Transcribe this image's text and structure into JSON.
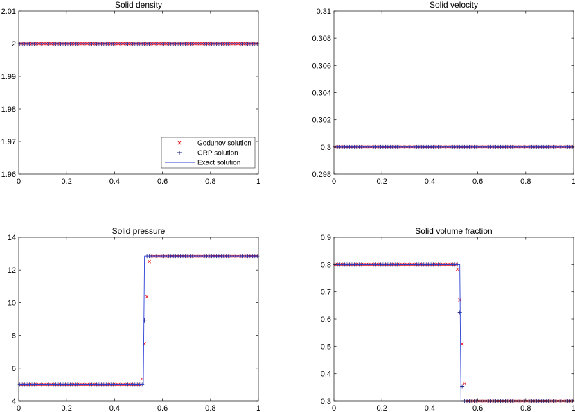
{
  "chart_data": [
    {
      "type": "line",
      "title": "Solid density",
      "xlim": [
        0,
        1
      ],
      "ylim": [
        1.96,
        2.01
      ],
      "xticks": [
        0,
        0.2,
        0.4,
        0.6,
        0.8,
        1
      ],
      "xtick_labels": [
        "0",
        "0.2",
        "0.4",
        "0.6",
        "0.8",
        "1"
      ],
      "yticks": [
        1.96,
        1.97,
        1.98,
        1.99,
        2,
        2.01
      ],
      "ytick_labels": [
        "1.96",
        "1.97",
        "1.98",
        "1.99",
        "2",
        "2.01"
      ],
      "series": [
        {
          "name": "Godunov solution",
          "style": "x-marker",
          "color": "#e8141c",
          "profile": "constant",
          "left": 2,
          "right": 2
        },
        {
          "name": "GRP solution",
          "style": "plus-marker",
          "color": "#15157a",
          "profile": "constant",
          "left": 2,
          "right": 2
        },
        {
          "name": "Exact solution",
          "style": "line",
          "color": "#2a3fd6",
          "points": [
            [
              0,
              2
            ],
            [
              1,
              2
            ]
          ]
        }
      ],
      "legend": "bottom-right"
    },
    {
      "type": "line",
      "title": "Solid velocity",
      "xlim": [
        0,
        1
      ],
      "ylim": [
        0.298,
        0.31
      ],
      "xticks": [
        0,
        0.2,
        0.4,
        0.6,
        0.8,
        1
      ],
      "xtick_labels": [
        "0",
        "0.2",
        "0.4",
        "0.6",
        "0.8",
        "1"
      ],
      "yticks": [
        0.298,
        0.3,
        0.302,
        0.304,
        0.306,
        0.308,
        0.31
      ],
      "ytick_labels": [
        "0.298",
        "0.3",
        "0.302",
        "0.304",
        "0.306",
        "0.308",
        "0.31"
      ],
      "series": [
        {
          "name": "Godunov solution",
          "style": "x-marker",
          "color": "#e8141c",
          "profile": "constant",
          "left": 0.3,
          "right": 0.3
        },
        {
          "name": "GRP solution",
          "style": "plus-marker",
          "color": "#15157a",
          "profile": "constant",
          "left": 0.3,
          "right": 0.3
        },
        {
          "name": "Exact solution",
          "style": "line",
          "color": "#2a3fd6",
          "points": [
            [
              0,
              0.3
            ],
            [
              1,
              0.3
            ]
          ]
        }
      ]
    },
    {
      "type": "line",
      "title": "Solid pressure",
      "xlim": [
        0,
        1
      ],
      "ylim": [
        4,
        14
      ],
      "xticks": [
        0,
        0.2,
        0.4,
        0.6,
        0.8,
        1
      ],
      "xtick_labels": [
        "0",
        "0.2",
        "0.4",
        "0.6",
        "0.8",
        "1"
      ],
      "yticks": [
        4,
        6,
        8,
        10,
        12,
        14
      ],
      "ytick_labels": [
        "4",
        "6",
        "8",
        "10",
        "12",
        "14"
      ],
      "series": [
        {
          "name": "Godunov solution",
          "style": "x-marker",
          "color": "#e8141c",
          "profile": "step",
          "left": 5,
          "right": 12.85,
          "jump_start": 0.51,
          "jump_end": 0.55
        },
        {
          "name": "GRP solution",
          "style": "plus-marker",
          "color": "#15157a",
          "profile": "step",
          "left": 5,
          "right": 12.85,
          "jump_start": 0.515,
          "jump_end": 0.535
        },
        {
          "name": "Exact solution",
          "style": "line",
          "color": "#2a3fd6",
          "points": [
            [
              0,
              5
            ],
            [
              0.52,
              5
            ],
            [
              0.525,
              12.85
            ],
            [
              1,
              12.85
            ]
          ]
        }
      ]
    },
    {
      "type": "line",
      "title": "Solid volume fraction",
      "xlim": [
        0,
        1
      ],
      "ylim": [
        0.3,
        0.9
      ],
      "xticks": [
        0,
        0.2,
        0.4,
        0.6,
        0.8,
        1
      ],
      "xtick_labels": [
        "0",
        "0.2",
        "0.4",
        "0.6",
        "0.8",
        "1"
      ],
      "yticks": [
        0.3,
        0.4,
        0.5,
        0.6,
        0.7,
        0.8,
        0.9
      ],
      "ytick_labels": [
        "0.3",
        "0.4",
        "0.5",
        "0.6",
        "0.7",
        "0.8",
        "0.9"
      ],
      "series": [
        {
          "name": "Godunov solution",
          "style": "x-marker",
          "color": "#e8141c",
          "profile": "step",
          "left": 0.8,
          "right": 0.3,
          "jump_start": 0.51,
          "jump_end": 0.555
        },
        {
          "name": "GRP solution",
          "style": "plus-marker",
          "color": "#15157a",
          "profile": "step",
          "left": 0.8,
          "right": 0.3,
          "jump_start": 0.515,
          "jump_end": 0.54
        },
        {
          "name": "Exact solution",
          "style": "line",
          "color": "#2a3fd6",
          "points": [
            [
              0,
              0.8
            ],
            [
              0.525,
              0.8
            ],
            [
              0.53,
              0.3
            ],
            [
              1,
              0.3
            ]
          ]
        }
      ]
    }
  ],
  "legend": {
    "items": [
      {
        "label": "Godunov solution",
        "style": "x-marker",
        "color": "#e8141c"
      },
      {
        "label": "GRP solution",
        "style": "plus-marker",
        "color": "#15157a"
      },
      {
        "label": "Exact solution",
        "style": "line",
        "color": "#2a3fd6"
      }
    ]
  },
  "sampling": {
    "cells": 100
  }
}
